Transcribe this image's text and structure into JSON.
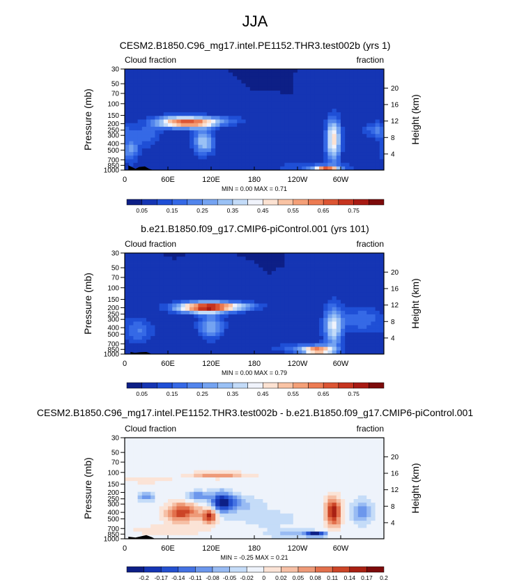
{
  "figure": {
    "title": "JJA"
  },
  "palettes": {
    "sequential": [
      "#0d1f86",
      "#1535b4",
      "#1f4fd6",
      "#3569e6",
      "#5285ec",
      "#74a3f1",
      "#9ac1f5",
      "#c3dbf8",
      "#f0f3fb",
      "#fce2d2",
      "#f9c3a4",
      "#f4a078",
      "#ec7b52",
      "#dc5533",
      "#c6341f",
      "#a81a13",
      "#7d0b0b"
    ],
    "diverging": [
      "#0d1f86",
      "#1535b4",
      "#2450cf",
      "#4472e2",
      "#6c97ec",
      "#98bbf3",
      "#c5dcf8",
      "#eef3fb",
      "#fbe3d6",
      "#f6c0a6",
      "#ee9a78",
      "#e2704c",
      "#cc4527",
      "#a92113",
      "#7d0b0b"
    ]
  },
  "colorbars": {
    "sequential_labels": [
      "0.05",
      "0.15",
      "0.25",
      "0.35",
      "0.45",
      "0.55",
      "0.65",
      "0.75"
    ],
    "diverging_labels": [
      "-0.2",
      "-0.17",
      "-0.14",
      "-0.11",
      "-0.08",
      "-0.05",
      "-0.02",
      "0",
      "0.02",
      "0.05",
      "0.08",
      "0.11",
      "0.14",
      "0.17",
      "0.2"
    ]
  },
  "chart_data": [
    {
      "type": "heatmap",
      "title": "CESM2.B1850.C96_mg17.intel.PE1152.THR3.test002b (yrs 1)",
      "left_label": "Cloud fraction",
      "right_label": "fraction",
      "ylabel": "Pressure (mb)",
      "ylabel_right": "Height (km)",
      "x_ticks": [
        "0",
        "60E",
        "120E",
        "180",
        "120W",
        "60W"
      ],
      "x_tick_values": [
        0,
        60,
        120,
        180,
        240,
        300
      ],
      "xlim": [
        0,
        360
      ],
      "y_ticks": [
        "30",
        "50",
        "70",
        "100",
        "150",
        "200",
        "250",
        "300",
        "400",
        "500",
        "700",
        "850",
        "1000"
      ],
      "y_tick_values": [
        30,
        50,
        70,
        100,
        150,
        200,
        250,
        300,
        400,
        500,
        700,
        850,
        1000
      ],
      "ylim": [
        1000,
        30
      ],
      "y_scale": "log",
      "height_ticks": [
        "20",
        "16",
        "12",
        "8",
        "4"
      ],
      "height_tick_values": [
        20,
        16,
        12,
        8,
        4
      ],
      "stats": "MIN =  0.00  MAX =  0.71",
      "min": 0.0,
      "max": 0.71,
      "colorbar": "sequential",
      "features": [
        {
          "lon": 75,
          "p": 190,
          "slon": 22,
          "slp": 0.14,
          "a": 0.52
        },
        {
          "lon": 105,
          "p": 200,
          "slon": 18,
          "slp": 0.12,
          "a": 0.25
        },
        {
          "lon": 125,
          "p": 180,
          "slon": 28,
          "slp": 0.12,
          "a": 0.18
        },
        {
          "lon": 110,
          "p": 380,
          "slon": 10,
          "slp": 0.3,
          "a": 0.3
        },
        {
          "lon": 290,
          "p": 350,
          "slon": 7,
          "slp": 0.5,
          "a": 0.45
        },
        {
          "lon": 280,
          "p": 950,
          "slon": 12,
          "slp": 0.06,
          "a": 0.5
        },
        {
          "lon": 265,
          "p": 900,
          "slon": 40,
          "slp": 0.1,
          "a": 0.12
        },
        {
          "lon": 8,
          "p": 500,
          "slon": 8,
          "slp": 0.3,
          "a": 0.2
        },
        {
          "lon": 30,
          "p": 300,
          "slon": 15,
          "slp": 0.3,
          "a": 0.12
        },
        {
          "lon": 350,
          "p": 250,
          "slon": 12,
          "slp": 0.2,
          "a": 0.16
        }
      ],
      "base_value": 0.05,
      "terrain": [
        [
          5,
          850
        ],
        [
          15,
          960
        ],
        [
          20,
          900
        ],
        [
          28,
          880
        ],
        [
          34,
          960
        ],
        [
          40,
          1000
        ]
      ]
    },
    {
      "type": "heatmap",
      "title": "b.e21.B1850.f09_g17.CMIP6-piControl.001 (yrs 101)",
      "left_label": "Cloud fraction",
      "right_label": "fraction",
      "ylabel": "Pressure (mb)",
      "ylabel_right": "Height (km)",
      "x_ticks": [
        "0",
        "60E",
        "120E",
        "180",
        "120W",
        "60W"
      ],
      "x_tick_values": [
        0,
        60,
        120,
        180,
        240,
        300
      ],
      "xlim": [
        0,
        360
      ],
      "y_ticks": [
        "30",
        "50",
        "70",
        "100",
        "150",
        "200",
        "250",
        "300",
        "400",
        "500",
        "700",
        "850",
        "1000"
      ],
      "y_tick_values": [
        30,
        50,
        70,
        100,
        150,
        200,
        250,
        300,
        400,
        500,
        700,
        850,
        1000
      ],
      "ylim": [
        1000,
        30
      ],
      "y_scale": "log",
      "height_ticks": [
        "20",
        "16",
        "12",
        "8",
        "4"
      ],
      "height_tick_values": [
        20,
        16,
        12,
        8,
        4
      ],
      "stats": "MIN =  0.00  MAX =  0.79",
      "min": 0.0,
      "max": 0.79,
      "colorbar": "sequential",
      "features": [
        {
          "lon": 110,
          "p": 200,
          "slon": 28,
          "slp": 0.13,
          "a": 0.62
        },
        {
          "lon": 145,
          "p": 190,
          "slon": 30,
          "slp": 0.1,
          "a": 0.25
        },
        {
          "lon": 120,
          "p": 380,
          "slon": 12,
          "slp": 0.3,
          "a": 0.25
        },
        {
          "lon": 290,
          "p": 380,
          "slon": 9,
          "slp": 0.5,
          "a": 0.35
        },
        {
          "lon": 268,
          "p": 880,
          "slon": 14,
          "slp": 0.09,
          "a": 0.55
        },
        {
          "lon": 250,
          "p": 820,
          "slon": 30,
          "slp": 0.12,
          "a": 0.15
        },
        {
          "lon": 20,
          "p": 450,
          "slon": 14,
          "slp": 0.3,
          "a": 0.15
        },
        {
          "lon": 330,
          "p": 300,
          "slon": 18,
          "slp": 0.3,
          "a": 0.15
        }
      ],
      "base_value": 0.05,
      "terrain": [
        [
          8,
          930
        ],
        [
          14,
          960
        ],
        [
          22,
          940
        ],
        [
          30,
          930
        ],
        [
          38,
          1000
        ]
      ]
    },
    {
      "type": "heatmap",
      "title": "CESM2.B1850.C96_mg17.intel.PE1152.THR3.test002b - b.e21.B1850.f09_g17.CMIP6-piControl.001",
      "left_label": "Cloud fraction",
      "right_label": "fraction",
      "ylabel": "Pressure (mb)",
      "ylabel_right": "Height (km)",
      "x_ticks": [
        "0",
        "60E",
        "120E",
        "180",
        "120W",
        "60W"
      ],
      "x_tick_values": [
        0,
        60,
        120,
        180,
        240,
        300
      ],
      "xlim": [
        0,
        360
      ],
      "y_ticks": [
        "30",
        "50",
        "70",
        "100",
        "150",
        "200",
        "250",
        "300",
        "400",
        "500",
        "700",
        "850",
        "1000"
      ],
      "y_tick_values": [
        30,
        50,
        70,
        100,
        150,
        200,
        250,
        300,
        400,
        500,
        700,
        850,
        1000
      ],
      "ylim": [
        1000,
        30
      ],
      "y_scale": "log",
      "height_ticks": [
        "20",
        "16",
        "12",
        "8",
        "4"
      ],
      "height_tick_values": [
        20,
        16,
        12,
        8,
        4
      ],
      "stats": "MIN = -0.25  MAX =  0.21",
      "min": -0.25,
      "max": 0.21,
      "colorbar": "diverging",
      "features": [
        {
          "lon": 130,
          "p": 110,
          "slon": 30,
          "slp": 0.08,
          "a": 0.1
        },
        {
          "lon": 30,
          "p": 130,
          "slon": 25,
          "slp": 0.08,
          "a": 0.05
        },
        {
          "lon": 30,
          "p": 230,
          "slon": 8,
          "slp": 0.12,
          "a": -0.1
        },
        {
          "lon": 80,
          "p": 400,
          "slon": 16,
          "slp": 0.25,
          "a": 0.16
        },
        {
          "lon": 118,
          "p": 450,
          "slon": 8,
          "slp": 0.2,
          "a": 0.18
        },
        {
          "lon": 135,
          "p": 280,
          "slon": 12,
          "slp": 0.25,
          "a": -0.2
        },
        {
          "lon": 100,
          "p": 230,
          "slon": 10,
          "slp": 0.12,
          "a": -0.12
        },
        {
          "lon": 160,
          "p": 300,
          "slon": 20,
          "slp": 0.2,
          "a": -0.06
        },
        {
          "lon": 290,
          "p": 400,
          "slon": 8,
          "slp": 0.35,
          "a": 0.2
        },
        {
          "lon": 265,
          "p": 850,
          "slon": 10,
          "slp": 0.06,
          "a": -0.24
        },
        {
          "lon": 230,
          "p": 850,
          "slon": 25,
          "slp": 0.1,
          "a": -0.05
        },
        {
          "lon": 330,
          "p": 400,
          "slon": 10,
          "slp": 0.3,
          "a": -0.1
        },
        {
          "lon": 60,
          "p": 750,
          "slon": 40,
          "slp": 0.15,
          "a": 0.04
        },
        {
          "lon": 200,
          "p": 500,
          "slon": 40,
          "slp": 0.3,
          "a": -0.03
        }
      ],
      "base_value": 0.0,
      "terrain": [
        [
          5,
          930
        ],
        [
          15,
          960
        ],
        [
          22,
          920
        ],
        [
          30,
          880
        ],
        [
          38,
          950
        ],
        [
          42,
          1000
        ]
      ]
    }
  ]
}
